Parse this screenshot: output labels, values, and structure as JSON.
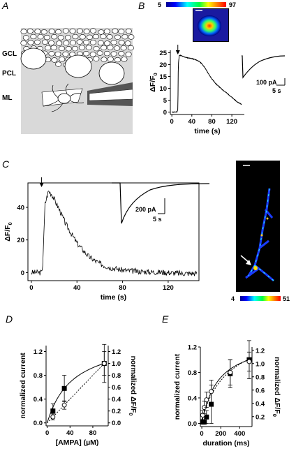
{
  "panels": {
    "A": "A",
    "B": "B",
    "C": "C",
    "D": "D",
    "E": "E"
  },
  "panel_a": {
    "layer_labels": [
      "GCL",
      "PCL",
      "ML"
    ]
  },
  "panel_b": {
    "colorbar_min": "5",
    "colorbar_max": "97",
    "scale_label": "100 pA",
    "time_scale_label": "5 s"
  },
  "panel_c": {
    "colorbar_min": "4",
    "colorbar_max": "51",
    "scale_label": "200 pA",
    "time_scale_label": "5 s"
  },
  "colors": {
    "schematic_bg": "#d9d9d9",
    "electrode_dark": "#555555",
    "image_bg": "#000000"
  },
  "chart_data": [
    {
      "id": "B",
      "type": "line",
      "xlabel": "time (s)",
      "ylabel": "ΔF/F0 (%)",
      "xlim": [
        -3,
        145
      ],
      "ylim": [
        -1,
        26
      ],
      "xticks": [
        0,
        40,
        80,
        120
      ],
      "yticks": [
        0,
        5,
        10,
        15,
        20,
        25
      ],
      "stim_time": 12,
      "series": [
        {
          "x": [
            0,
            5,
            10,
            12,
            13,
            15,
            20,
            25,
            30,
            35,
            40,
            45,
            50,
            55,
            60,
            65,
            70,
            75,
            80,
            85,
            90,
            95,
            100,
            105,
            110,
            115,
            120,
            125,
            130,
            135,
            140
          ],
          "y": [
            0,
            0,
            0.1,
            1,
            20,
            24,
            23.6,
            23.2,
            22.9,
            22.7,
            22.5,
            22.2,
            21.8,
            21.3,
            20.3,
            19,
            17.3,
            15.5,
            14,
            12.7,
            11.5,
            10.6,
            9.6,
            8.8,
            8,
            7.1,
            6.2,
            5.3,
            4.4,
            3.8,
            3.2
          ]
        }
      ]
    },
    {
      "id": "C",
      "type": "line",
      "xlabel": "time (s)",
      "ylabel": "ΔF/F0 (%)",
      "xlim": [
        -3,
        147
      ],
      "ylim": [
        -5,
        55
      ],
      "xticks": [
        0,
        40,
        80,
        120
      ],
      "yticks": [
        0,
        20,
        40
      ],
      "stim_time": 9,
      "series": [
        {
          "x": [
            0,
            5,
            9,
            10,
            12,
            15,
            18,
            20,
            25,
            30,
            35,
            40,
            45,
            50,
            55,
            60,
            65,
            70,
            80,
            90,
            100,
            110,
            120,
            130,
            145
          ],
          "y": [
            0,
            0,
            0,
            5,
            42,
            50,
            48,
            45,
            38,
            30,
            24,
            18,
            14,
            10,
            7.5,
            5.5,
            4,
            3,
            1.5,
            0.8,
            0.5,
            0.2,
            0,
            -0.5,
            -0.5
          ]
        }
      ]
    },
    {
      "id": "D",
      "type": "scatter",
      "xlabel": "[AMPA] (µM)",
      "ylabel": "normalized current",
      "ylabel_right": "normalized ΔF/F0",
      "xlim": [
        -2,
        107
      ],
      "ylim": [
        -0.05,
        1.3
      ],
      "ylim_right": [
        -0.05,
        1.3
      ],
      "xticks": [
        0,
        40,
        80
      ],
      "yticks": [
        0.0,
        0.4,
        0.8,
        1.2
      ],
      "yticks_right": [
        0.0,
        0.2,
        0.4,
        0.6,
        0.8,
        1.0,
        1.2
      ],
      "series": [
        {
          "name": "current",
          "marker": "filled-square",
          "line": "solid",
          "x": [
            10,
            30,
            100
          ],
          "y": [
            0.2,
            0.58,
            1.0
          ],
          "err": [
            0.12,
            0.22,
            0.32
          ]
        },
        {
          "name": "ΔF/F0",
          "marker": "open-circle",
          "line": "dotted",
          "x": [
            10,
            30,
            100
          ],
          "y": [
            0.1,
            0.3,
            1.0
          ],
          "err": [
            0.05,
            0.07,
            0.2
          ]
        }
      ]
    },
    {
      "id": "E",
      "type": "scatter",
      "xlabel": "duration (ms)",
      "ylabel": "normalized current",
      "ylabel_right": "normalized ΔF/F0",
      "xlim": [
        -15,
        530
      ],
      "ylim": [
        -0.05,
        1.2
      ],
      "ylim_right": [
        0.05,
        1.25
      ],
      "xticks": [
        0,
        200,
        400
      ],
      "yticks": [
        0.0,
        0.4,
        0.8,
        1.2
      ],
      "yticks_right": [
        0.2,
        0.4,
        0.6,
        0.8,
        1.0,
        1.2
      ],
      "series": [
        {
          "name": "current",
          "marker": "filled-square",
          "line": "solid",
          "x": [
            10,
            25,
            50,
            100,
            300,
            500
          ],
          "y": [
            0.02,
            0.02,
            0.1,
            0.3,
            0.78,
            1.0
          ],
          "err": [
            0.03,
            0.03,
            0.1,
            0.3,
            0.22,
            0.3
          ]
        },
        {
          "name": "ΔF/F0",
          "marker": "open-circle",
          "line": "dotted",
          "x": [
            10,
            25,
            50,
            100,
            300,
            500
          ],
          "y": [
            0.13,
            0.25,
            0.37,
            0.5,
            0.8,
            0.97
          ],
          "err": [
            0.07,
            0.1,
            0.12,
            0.18,
            0.2,
            0.15
          ]
        }
      ]
    }
  ]
}
